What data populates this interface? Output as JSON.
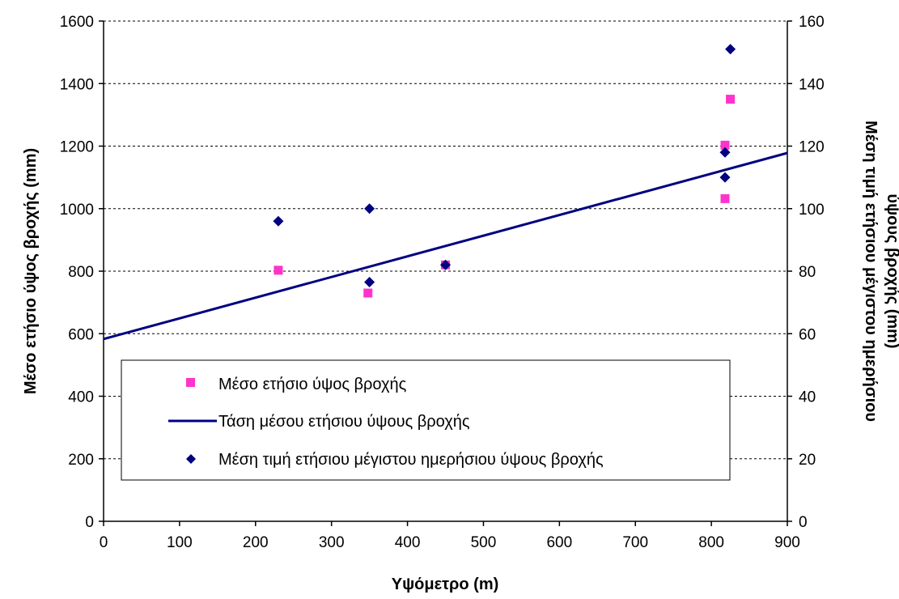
{
  "chart_data": {
    "type": "scatter",
    "xlabel": "Υψόμετρο (m)",
    "ylabel": "Μέσο ετήσιο ύψος βροχής (mm)",
    "y2label_line1": "Μέση τιμή ετήσιου μέγιστου ημερήσιου",
    "y2label_line2": "ύψους βροχής (mm)",
    "xlim": [
      0,
      900
    ],
    "ylim": [
      0,
      1600
    ],
    "y2lim": [
      0,
      160
    ],
    "x_ticks": [
      "0",
      "100",
      "200",
      "300",
      "400",
      "500",
      "600",
      "700",
      "800",
      "900"
    ],
    "y_ticks": [
      "0",
      "200",
      "400",
      "600",
      "800",
      "1000",
      "1200",
      "1400",
      "1600"
    ],
    "y2_ticks": [
      "0",
      "20",
      "40",
      "60",
      "80",
      "100",
      "120",
      "140",
      "160"
    ],
    "grid": "horizontal-dashed",
    "legend_position": "lower-left",
    "series": [
      {
        "name": "Μέσο ετήσιο ύψος βροχής",
        "axis": "left",
        "marker": "square",
        "color": "#ff33cc",
        "points": [
          {
            "x": 230,
            "y": 803
          },
          {
            "x": 348,
            "y": 730
          },
          {
            "x": 450,
            "y": 820
          },
          {
            "x": 818,
            "y": 1203
          },
          {
            "x": 818,
            "y": 1032
          },
          {
            "x": 825,
            "y": 1350
          }
        ]
      },
      {
        "name": "Τάση μέσου ετήσιου ύψους βροχής",
        "axis": "left",
        "marker": "line",
        "color": "#000080",
        "points": [
          {
            "x": 0,
            "y": 583
          },
          {
            "x": 900,
            "y": 1178
          }
        ]
      },
      {
        "name": "Μέση τιμή ετήσιου μέγιστου ημερήσιου ύψους βροχής",
        "axis": "right",
        "marker": "diamond",
        "color": "#000080",
        "points": [
          {
            "x": 230,
            "y": 96
          },
          {
            "x": 350,
            "y": 100
          },
          {
            "x": 350,
            "y": 76.5
          },
          {
            "x": 450,
            "y": 82
          },
          {
            "x": 818,
            "y": 118
          },
          {
            "x": 818,
            "y": 110
          },
          {
            "x": 825,
            "y": 151
          }
        ]
      }
    ]
  }
}
